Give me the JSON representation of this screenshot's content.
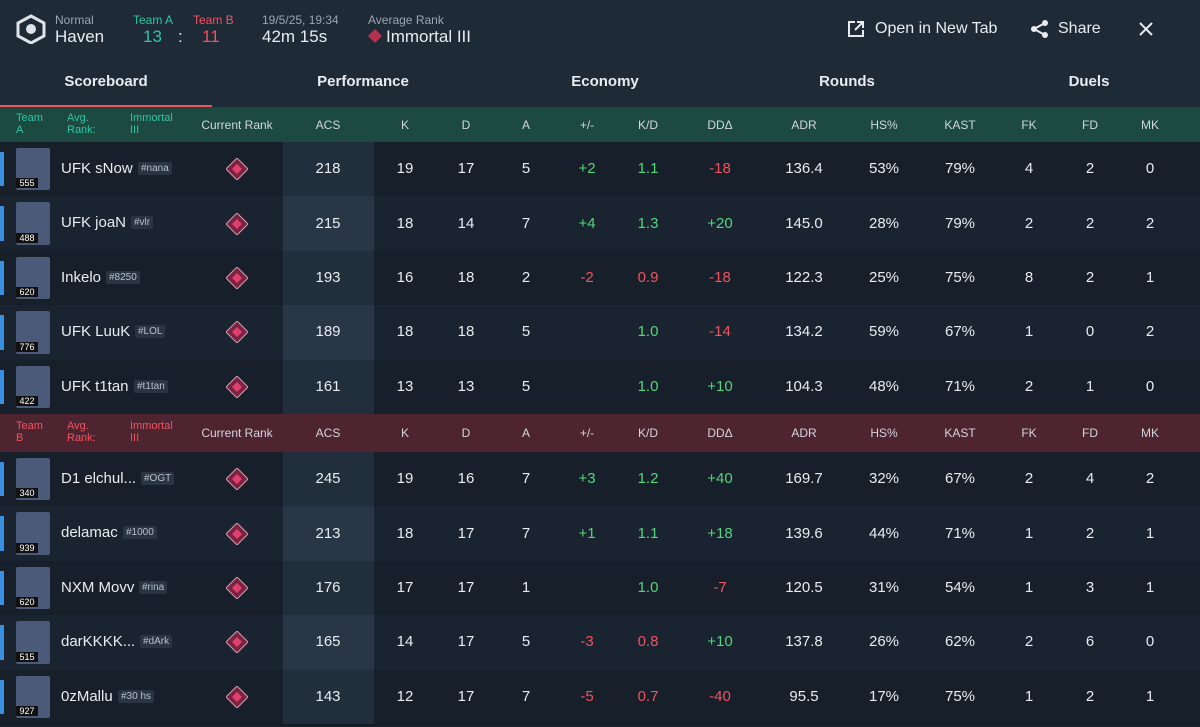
{
  "header": {
    "mode": "Normal",
    "map": "Haven",
    "team_a_label": "Team A",
    "team_a_score": "13",
    "separator": ":",
    "team_b_label": "Team B",
    "team_b_score": "11",
    "date": "19/5/25, 19:34",
    "duration": "42m 15s",
    "avg_rank_label": "Average Rank",
    "avg_rank": "Immortal III",
    "open_tab": "Open in New Tab",
    "share": "Share"
  },
  "tabs": [
    "Scoreboard",
    "Performance",
    "Economy",
    "Rounds",
    "Duels"
  ],
  "columns": [
    "Current Rank",
    "ACS",
    "K",
    "D",
    "A",
    "+/-",
    "K/D",
    "DDΔ",
    "ADR",
    "HS%",
    "KAST",
    "FK",
    "FD",
    "MK"
  ],
  "teams": [
    {
      "label": "Team A",
      "avg_label": "Avg. Rank:",
      "avg_rank": "Immortal III",
      "players": [
        {
          "name": "UFK sNow",
          "tag": "#nana",
          "level": "555",
          "stats": [
            "218",
            "19",
            "17",
            "5",
            "+2",
            "1.1",
            "-18",
            "136.4",
            "53%",
            "79%",
            "4",
            "2",
            "0"
          ]
        },
        {
          "name": "UFK joaN",
          "tag": "#vlr",
          "level": "488",
          "stats": [
            "215",
            "18",
            "14",
            "7",
            "+4",
            "1.3",
            "+20",
            "145.0",
            "28%",
            "79%",
            "2",
            "2",
            "2"
          ]
        },
        {
          "name": "Inkelo",
          "tag": "#8250",
          "level": "620",
          "stats": [
            "193",
            "16",
            "18",
            "2",
            "-2",
            "0.9",
            "-18",
            "122.3",
            "25%",
            "75%",
            "8",
            "2",
            "1"
          ]
        },
        {
          "name": "UFK LuuK",
          "tag": "#LOL",
          "level": "776",
          "stats": [
            "189",
            "18",
            "18",
            "5",
            null,
            "1.0",
            "-14",
            "134.2",
            "59%",
            "67%",
            "1",
            "0",
            "2"
          ]
        },
        {
          "name": "UFK t1tan",
          "tag": "#t1tan",
          "level": "422",
          "stats": [
            "161",
            "13",
            "13",
            "5",
            null,
            "1.0",
            "+10",
            "104.3",
            "48%",
            "71%",
            "2",
            "1",
            "0"
          ]
        }
      ]
    },
    {
      "label": "Team B",
      "avg_label": "Avg. Rank:",
      "avg_rank": "Immortal III",
      "players": [
        {
          "name": "D1 elchul...",
          "tag": "#OGT",
          "level": "340",
          "stats": [
            "245",
            "19",
            "16",
            "7",
            "+3",
            "1.2",
            "+40",
            "169.7",
            "32%",
            "67%",
            "2",
            "4",
            "2"
          ]
        },
        {
          "name": "delamac",
          "tag": "#1000",
          "level": "939",
          "stats": [
            "213",
            "18",
            "17",
            "7",
            "+1",
            "1.1",
            "+18",
            "139.6",
            "44%",
            "71%",
            "1",
            "2",
            "1"
          ]
        },
        {
          "name": "NXM Movv",
          "tag": "#rina",
          "level": "620",
          "stats": [
            "176",
            "17",
            "17",
            "1",
            null,
            "1.0",
            "-7",
            "120.5",
            "31%",
            "54%",
            "1",
            "3",
            "1"
          ]
        },
        {
          "name": "darKKKK...",
          "tag": "#dArk",
          "level": "515",
          "stats": [
            "165",
            "14",
            "17",
            "5",
            "-3",
            "0.8",
            "+10",
            "137.8",
            "26%",
            "62%",
            "2",
            "6",
            "0"
          ]
        },
        {
          "name": "0zMallu",
          "tag": "#30 hs",
          "level": "927",
          "stats": [
            "143",
            "12",
            "17",
            "7",
            "-5",
            "0.7",
            "-40",
            "95.5",
            "17%",
            "75%",
            "1",
            "2",
            "1"
          ]
        }
      ]
    }
  ]
}
